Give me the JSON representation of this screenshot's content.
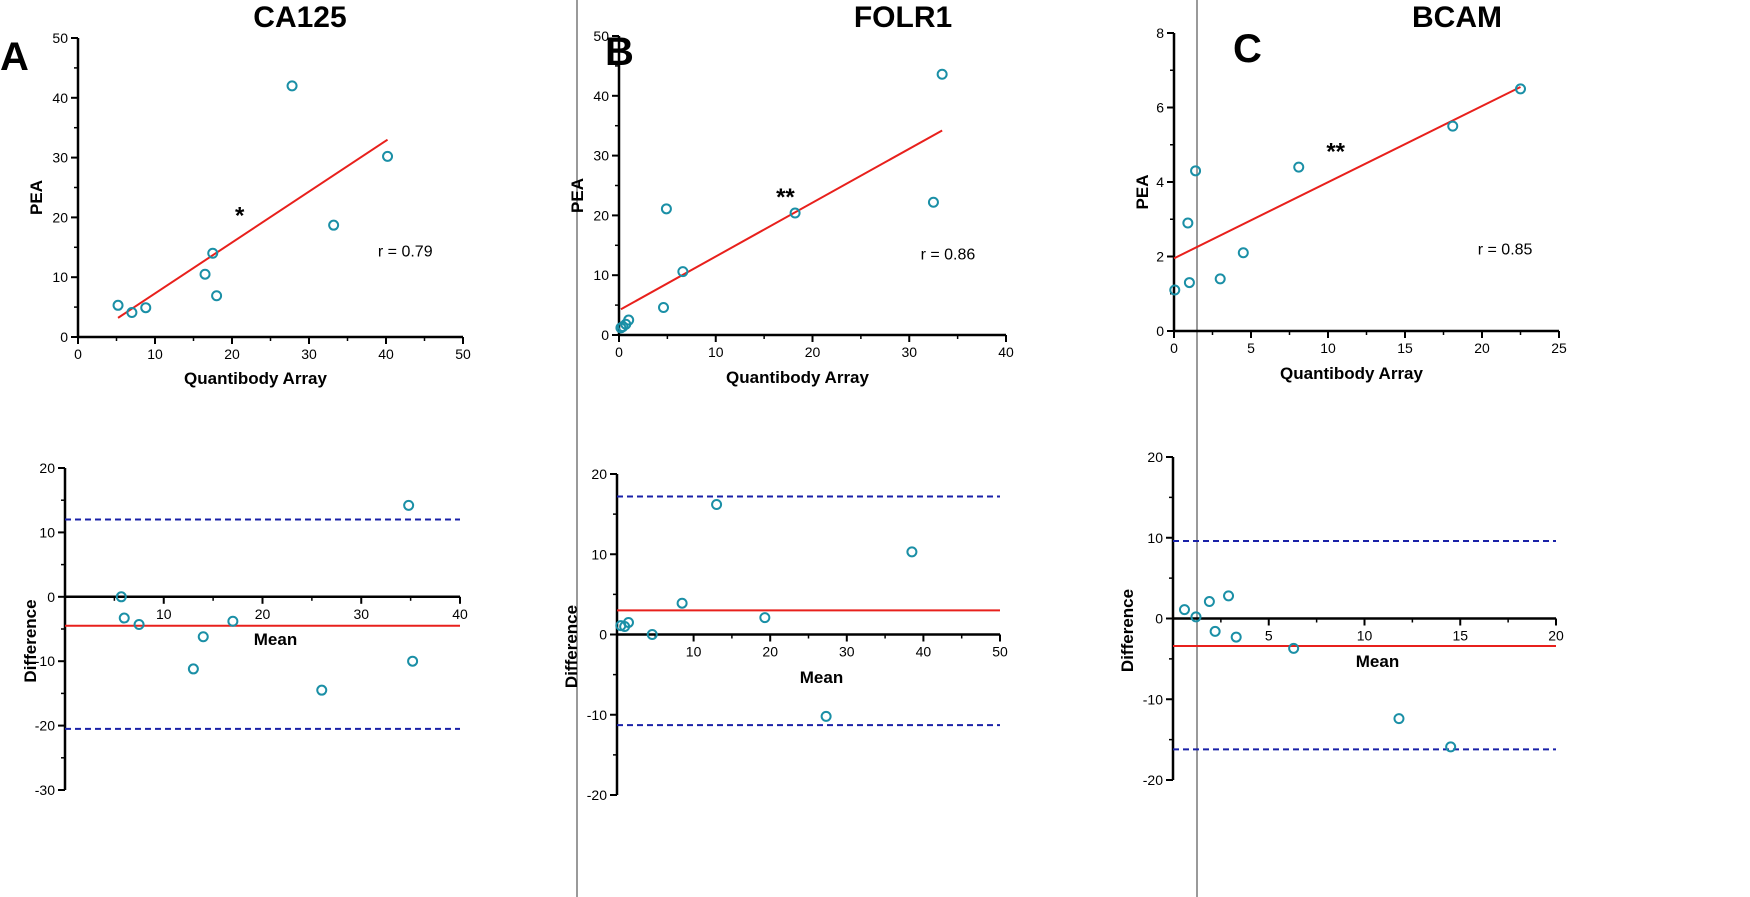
{
  "colors": {
    "point": "#1a8fa6",
    "fit_line": "#e8201c",
    "limit_line": "#1a22a8",
    "divider": "#9a9a9a",
    "axis": "#000000"
  },
  "panels": [
    {
      "letter": "A",
      "title": "CA125",
      "scatter": {
        "type": "scatter",
        "xlabel": "Quantibody Array",
        "ylabel": "PEA",
        "xlim": [
          0,
          50
        ],
        "ylim": [
          0,
          50
        ],
        "xticks": [
          0,
          10,
          20,
          30,
          40,
          50
        ],
        "yticks": [
          0,
          10,
          20,
          30,
          40,
          50
        ],
        "points": [
          [
            5.2,
            5.3
          ],
          [
            7.0,
            4.1
          ],
          [
            8.8,
            4.9
          ],
          [
            16.5,
            10.5
          ],
          [
            17.5,
            14.0
          ],
          [
            18.0,
            6.9
          ],
          [
            27.8,
            42.0
          ],
          [
            33.2,
            18.7
          ],
          [
            40.2,
            30.2
          ]
        ],
        "fit_line": [
          [
            5.2,
            3.2
          ],
          [
            40.2,
            33.0
          ]
        ],
        "r_text": "r = 0.79",
        "r_pos": [
          42.5,
          13.5
        ],
        "significance": "*",
        "sig_pos": [
          21.0,
          19.0
        ]
      },
      "bland_altman": {
        "type": "scatter",
        "xlabel": "Mean",
        "ylabel": "Difference",
        "xlim": [
          0,
          40
        ],
        "ylim": [
          -30,
          20
        ],
        "xticks": [
          10,
          20,
          30,
          40
        ],
        "yticks": [
          -30,
          -20,
          -10,
          0,
          10,
          20
        ],
        "points": [
          [
            5.7,
            0.0
          ],
          [
            6.0,
            -3.3
          ],
          [
            7.5,
            -4.3
          ],
          [
            13.0,
            -11.2
          ],
          [
            14.0,
            -6.2
          ],
          [
            17.0,
            -3.8
          ],
          [
            26.0,
            -14.5
          ],
          [
            34.8,
            14.2
          ],
          [
            35.2,
            -10.0
          ]
        ],
        "mean_bias": -4.5,
        "upper_loa": 12.0,
        "lower_loa": -20.5
      }
    },
    {
      "letter": "B",
      "title": "FOLR1",
      "scatter": {
        "type": "scatter",
        "xlabel": "Quantibody Array",
        "ylabel": "PEA",
        "xlim": [
          0,
          40
        ],
        "ylim": [
          0,
          50
        ],
        "xticks": [
          0,
          10,
          20,
          30,
          40
        ],
        "yticks": [
          0,
          10,
          20,
          30,
          40,
          50
        ],
        "points": [
          [
            0.2,
            1.2
          ],
          [
            0.4,
            1.4
          ],
          [
            0.7,
            1.8
          ],
          [
            1.0,
            2.5
          ],
          [
            4.6,
            4.6
          ],
          [
            4.9,
            21.1
          ],
          [
            6.6,
            10.6
          ],
          [
            18.2,
            20.4
          ],
          [
            32.5,
            22.2
          ],
          [
            33.4,
            43.6
          ]
        ],
        "fit_line": [
          [
            0.2,
            4.3
          ],
          [
            33.4,
            34.2
          ]
        ],
        "r_text": "r = 0.86",
        "r_pos": [
          34.0,
          12.6
        ],
        "significance": "**",
        "sig_pos": [
          17.2,
          21.7
        ]
      },
      "bland_altman": {
        "type": "scatter",
        "xlabel": "Mean",
        "ylabel": "Difference",
        "xlim": [
          0,
          50
        ],
        "ylim": [
          -20,
          20
        ],
        "xticks": [
          10,
          20,
          30,
          40,
          50
        ],
        "yticks": [
          -20,
          -10,
          0,
          10,
          20
        ],
        "points": [
          [
            0.5,
            1.1
          ],
          [
            1.0,
            1.0
          ],
          [
            1.5,
            1.5
          ],
          [
            4.6,
            0.0
          ],
          [
            8.5,
            3.9
          ],
          [
            13.0,
            16.2
          ],
          [
            19.3,
            2.1
          ],
          [
            27.3,
            -10.2
          ],
          [
            38.5,
            10.3
          ]
        ],
        "mean_bias": 3.0,
        "upper_loa": 17.2,
        "lower_loa": -11.3
      }
    },
    {
      "letter": "C",
      "title": "BCAM",
      "scatter": {
        "type": "scatter",
        "xlabel": "Quantibody Array",
        "ylabel": "PEA",
        "xlim": [
          0,
          25
        ],
        "ylim": [
          0,
          8
        ],
        "xticks": [
          0,
          5,
          10,
          15,
          20,
          25
        ],
        "yticks": [
          0,
          2,
          4,
          6,
          8
        ],
        "points": [
          [
            0.05,
            1.1
          ],
          [
            0.9,
            2.9
          ],
          [
            1.0,
            1.3
          ],
          [
            1.4,
            4.3
          ],
          [
            3.0,
            1.4
          ],
          [
            4.5,
            2.1
          ],
          [
            8.1,
            4.4
          ],
          [
            18.1,
            5.5
          ],
          [
            22.5,
            6.5
          ]
        ],
        "fit_line": [
          [
            0.0,
            1.95
          ],
          [
            22.5,
            6.55
          ]
        ],
        "r_text": "r = 0.85",
        "r_pos": [
          21.5,
          2.05
        ],
        "significance": "**",
        "sig_pos": [
          10.5,
          4.6
        ]
      },
      "bland_altman": {
        "type": "scatter",
        "xlabel": "Mean",
        "ylabel": "Difference",
        "xlim": [
          0,
          20
        ],
        "ylim": [
          -20,
          20
        ],
        "xticks": [
          5,
          10,
          15,
          20
        ],
        "yticks": [
          -20,
          -10,
          0,
          10,
          20
        ],
        "points": [
          [
            0.6,
            1.1
          ],
          [
            1.2,
            0.2
          ],
          [
            1.9,
            2.1
          ],
          [
            2.2,
            -1.6
          ],
          [
            2.9,
            2.8
          ],
          [
            3.3,
            -2.3
          ],
          [
            6.3,
            -3.7
          ],
          [
            11.8,
            -12.4
          ],
          [
            14.5,
            -15.9
          ]
        ],
        "mean_bias": -3.4,
        "upper_loa": 9.6,
        "lower_loa": -16.2
      }
    }
  ]
}
